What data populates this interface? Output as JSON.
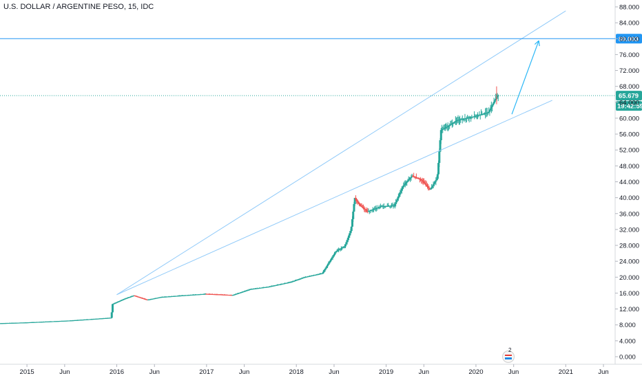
{
  "header": {
    "title": "U.S. DOLLAR / ARGENTINE PESO, 15, IDC"
  },
  "chart_data": {
    "type": "candlestick",
    "ylim": [
      0,
      90
    ],
    "y_ticks": [
      "88.000",
      "84.000",
      "80.000",
      "76.000",
      "72.000",
      "68.000",
      "64.000",
      "60.000",
      "56.000",
      "52.000",
      "48.000",
      "44.000",
      "40.000",
      "36.000",
      "32.000",
      "28.000",
      "24.000",
      "20.000",
      "16.000",
      "12.000",
      "8.000",
      "4.000",
      "0.000"
    ],
    "x_ticks": [
      "2015",
      "Jun",
      "2016",
      "Jun",
      "2017",
      "Jun",
      "2018",
      "Jun",
      "2019",
      "Jun",
      "2020",
      "Jun",
      "2021",
      "Jun"
    ],
    "x_tick_dates": [
      2015.0,
      2015.42,
      2016.0,
      2016.42,
      2017.0,
      2017.42,
      2018.0,
      2018.42,
      2019.0,
      2019.42,
      2020.0,
      2020.42,
      2021.0,
      2021.42
    ],
    "xlim": [
      2014.7,
      2021.55
    ],
    "horizontal_lines": [
      {
        "value": 80.003,
        "label": "80.003",
        "color": "#2196f3",
        "style": "solid"
      },
      {
        "value": 65.679,
        "label": "65.679",
        "color": "#26a69a",
        "style": "dotted"
      }
    ],
    "countdown": "19:42:59",
    "trend_lines": [
      {
        "from": [
          2016.0,
          15.6
        ],
        "to": [
          2021.0,
          87.0
        ]
      },
      {
        "from": [
          2016.0,
          15.6
        ],
        "to": [
          2020.85,
          64.5
        ]
      }
    ],
    "arrow": {
      "from": [
        2020.4,
        61.0
      ],
      "to": [
        2020.7,
        79.5
      ]
    },
    "events_count": "2",
    "colors": {
      "up": "#26a69a",
      "down": "#ef5350",
      "drawing": "#90caf9",
      "accent": "#2196f3"
    },
    "series_knots": [
      [
        2014.7,
        8.4
      ],
      [
        2015.0,
        8.6
      ],
      [
        2015.5,
        9.1
      ],
      [
        2015.95,
        9.8
      ],
      [
        2015.96,
        13.2
      ],
      [
        2016.1,
        14.6
      ],
      [
        2016.2,
        15.4
      ],
      [
        2016.35,
        14.3
      ],
      [
        2016.5,
        15.0
      ],
      [
        2016.8,
        15.5
      ],
      [
        2017.0,
        15.8
      ],
      [
        2017.3,
        15.5
      ],
      [
        2017.5,
        17.0
      ],
      [
        2017.7,
        17.6
      ],
      [
        2017.95,
        18.8
      ],
      [
        2018.1,
        20.0
      ],
      [
        2018.3,
        21.0
      ],
      [
        2018.45,
        26.5
      ],
      [
        2018.55,
        27.8
      ],
      [
        2018.62,
        32.0
      ],
      [
        2018.66,
        40.0
      ],
      [
        2018.72,
        38.0
      ],
      [
        2018.8,
        36.5
      ],
      [
        2018.95,
        37.8
      ],
      [
        2019.1,
        38.0
      ],
      [
        2019.2,
        43.0
      ],
      [
        2019.3,
        45.5
      ],
      [
        2019.4,
        44.5
      ],
      [
        2019.5,
        42.0
      ],
      [
        2019.58,
        45.0
      ],
      [
        2019.62,
        57.0
      ],
      [
        2019.7,
        58.0
      ],
      [
        2019.8,
        59.5
      ],
      [
        2020.0,
        60.5
      ],
      [
        2020.15,
        61.5
      ],
      [
        2020.22,
        64.5
      ],
      [
        2020.25,
        65.7
      ]
    ]
  }
}
